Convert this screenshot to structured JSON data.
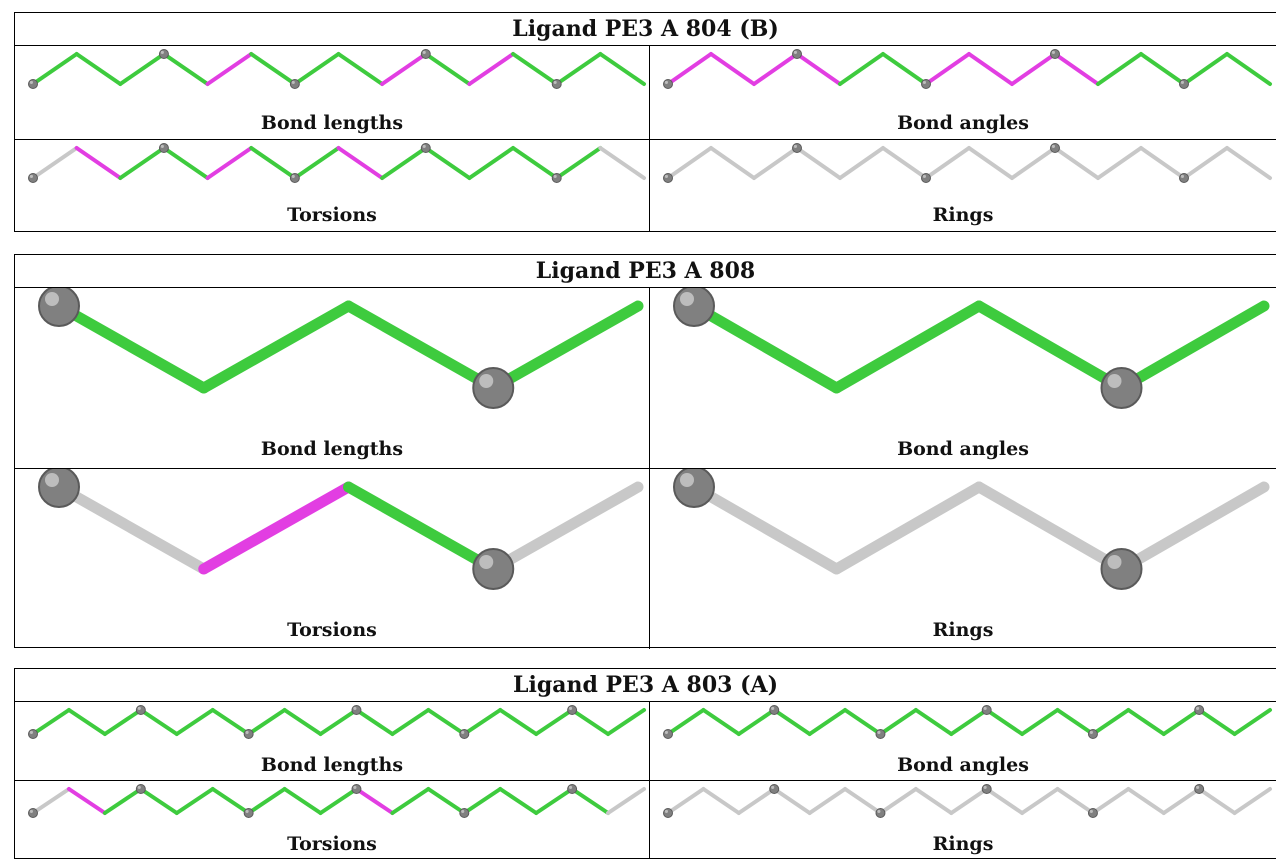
{
  "colors": {
    "ok": "#3ecb3e",
    "outlier": "#e23ee2",
    "neutral": "#c8c8c8",
    "atom": "#808080"
  },
  "ligands": [
    {
      "title": "Ligand PE3 A 804 (B)",
      "size": "small",
      "panels": [
        {
          "caption": "Bond lengths",
          "atoms": 13,
          "spheres": [
            0,
            3,
            6,
            9,
            12
          ],
          "bond_colors": [
            "ok",
            "ok",
            "ok",
            "ok",
            "outlier",
            "ok",
            "ok",
            "ok",
            "outlier",
            "ok",
            "outlier",
            "ok",
            "ok",
            "ok"
          ]
        },
        {
          "caption": "Bond angles",
          "atoms": 13,
          "spheres": [
            0,
            3,
            6,
            9,
            12
          ],
          "bond_colors": [
            "outlier",
            "outlier",
            "outlier",
            "outlier",
            "ok",
            "ok",
            "outlier",
            "outlier",
            "outlier",
            "outlier",
            "ok",
            "ok",
            "ok",
            "ok"
          ]
        },
        {
          "caption": "Torsions",
          "atoms": 13,
          "spheres": [
            0,
            3,
            6,
            9,
            12
          ],
          "bond_colors": [
            "neutral",
            "outlier",
            "ok",
            "ok",
            "outlier",
            "ok",
            "ok",
            "outlier",
            "ok",
            "ok",
            "ok",
            "ok",
            "ok",
            "neutral"
          ]
        },
        {
          "caption": "Rings",
          "atoms": 13,
          "spheres": [
            0,
            3,
            6,
            9,
            12
          ],
          "bond_colors": [
            "neutral",
            "neutral",
            "neutral",
            "neutral",
            "neutral",
            "neutral",
            "neutral",
            "neutral",
            "neutral",
            "neutral",
            "neutral",
            "neutral",
            "neutral",
            "neutral"
          ]
        }
      ]
    },
    {
      "title": "Ligand PE3 A 808",
      "size": "large",
      "panels": [
        {
          "caption": "Bond lengths",
          "atoms": 5,
          "spheres": [
            0,
            3
          ],
          "bond_colors": [
            "ok",
            "ok",
            "ok",
            "ok"
          ]
        },
        {
          "caption": "Bond angles",
          "atoms": 5,
          "spheres": [
            0,
            3
          ],
          "bond_colors": [
            "ok",
            "ok",
            "ok",
            "ok"
          ]
        },
        {
          "caption": "Torsions",
          "atoms": 5,
          "spheres": [
            0,
            3
          ],
          "bond_colors": [
            "neutral",
            "outlier",
            "ok",
            "neutral"
          ]
        },
        {
          "caption": "Rings",
          "atoms": 5,
          "spheres": [
            0,
            3
          ],
          "bond_colors": [
            "neutral",
            "neutral",
            "neutral",
            "neutral"
          ]
        }
      ]
    },
    {
      "title": "Ligand PE3 A 803 (A)",
      "size": "small",
      "panels": [
        {
          "caption": "Bond lengths",
          "atoms": 16,
          "spheres": [
            0,
            3,
            6,
            9,
            12,
            15
          ],
          "bond_colors": [
            "ok",
            "ok",
            "ok",
            "ok",
            "ok",
            "ok",
            "ok",
            "ok",
            "ok",
            "ok",
            "ok",
            "ok",
            "ok",
            "ok",
            "ok",
            "ok",
            "ok"
          ]
        },
        {
          "caption": "Bond angles",
          "atoms": 16,
          "spheres": [
            0,
            3,
            6,
            9,
            12,
            15
          ],
          "bond_colors": [
            "ok",
            "ok",
            "ok",
            "ok",
            "ok",
            "ok",
            "ok",
            "ok",
            "ok",
            "ok",
            "ok",
            "ok",
            "ok",
            "ok",
            "ok",
            "ok",
            "ok"
          ]
        },
        {
          "caption": "Torsions",
          "atoms": 16,
          "spheres": [
            0,
            3,
            6,
            9,
            12,
            15
          ],
          "bond_colors": [
            "neutral",
            "outlier",
            "ok",
            "ok",
            "ok",
            "ok",
            "ok",
            "ok",
            "ok",
            "outlier",
            "ok",
            "ok",
            "ok",
            "ok",
            "ok",
            "ok",
            "neutral"
          ]
        },
        {
          "caption": "Rings",
          "atoms": 16,
          "spheres": [
            0,
            3,
            6,
            9,
            12,
            15
          ],
          "bond_colors": [
            "neutral",
            "neutral",
            "neutral",
            "neutral",
            "neutral",
            "neutral",
            "neutral",
            "neutral",
            "neutral",
            "neutral",
            "neutral",
            "neutral",
            "neutral",
            "neutral",
            "neutral",
            "neutral",
            "neutral"
          ]
        }
      ]
    }
  ]
}
